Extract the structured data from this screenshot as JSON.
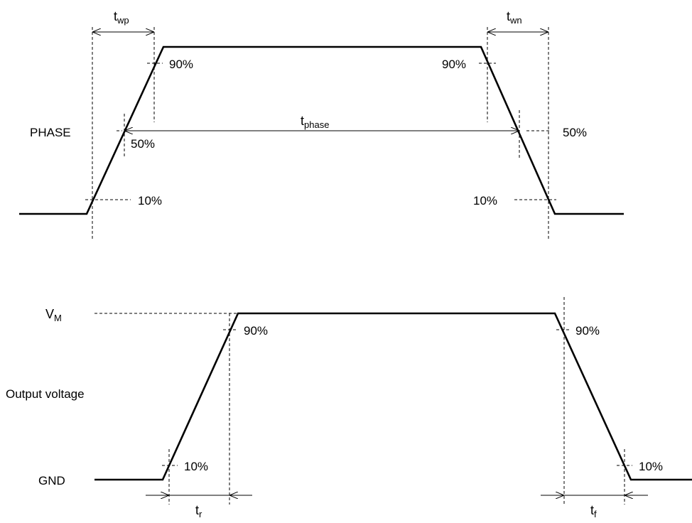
{
  "phase_panel": {
    "signal_label": "PHASE",
    "pct_90_left": "90%",
    "pct_90_right": "90%",
    "pct_50_left": "50%",
    "pct_50_right": "50%",
    "pct_10_left": "10%",
    "pct_10_right": "10%",
    "t_wp": {
      "symbol": "t",
      "sub": "wp"
    },
    "t_wn": {
      "symbol": "t",
      "sub": "wn"
    },
    "t_phase": {
      "symbol": "t",
      "sub": "phase"
    }
  },
  "output_panel": {
    "signal_label": "Output voltage",
    "vm": {
      "symbol": "V",
      "sub": "M"
    },
    "gnd_label": "GND",
    "pct_90_left": "90%",
    "pct_90_right": "90%",
    "pct_10_left": "10%",
    "pct_10_right": "10%",
    "t_r": {
      "symbol": "t",
      "sub": "r"
    },
    "t_f": {
      "symbol": "t",
      "sub": "f"
    }
  }
}
